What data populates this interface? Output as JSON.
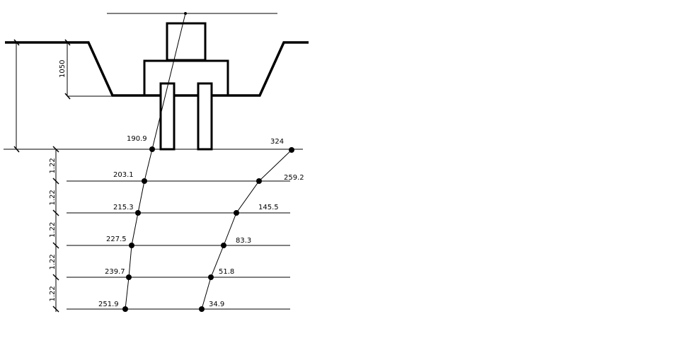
{
  "drawing": {
    "line_color": "#000000",
    "background": "#ffffff",
    "dimensions": {
      "depth_label": "1050",
      "layer_spacing_labels": [
        "1.22",
        "1.22",
        "1.22",
        "1.22",
        "1.22"
      ]
    },
    "left_profile_values": [
      "190.9",
      "203.1",
      "215.3",
      "227.5",
      "239.7",
      "251.9"
    ],
    "right_profile_values": [
      "324",
      "259.2",
      "145.5",
      "83.3",
      "51.8",
      "34.9"
    ]
  }
}
